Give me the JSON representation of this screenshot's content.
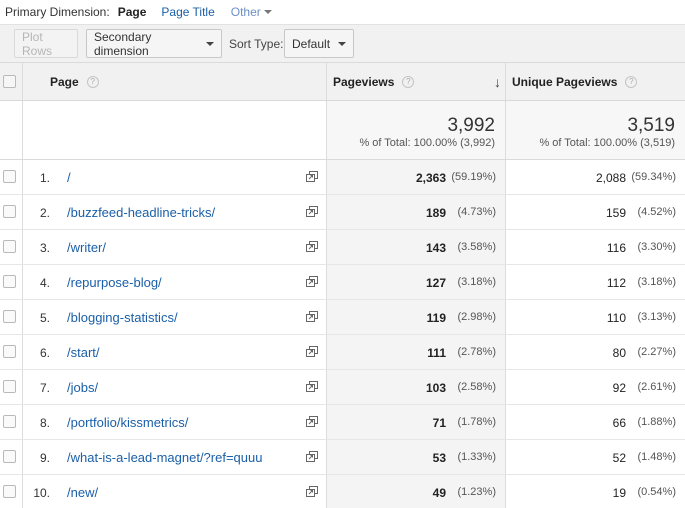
{
  "dimension": {
    "label": "Primary Dimension:",
    "active": "Page",
    "options": [
      "Page Title"
    ],
    "other": "Other"
  },
  "toolbar": {
    "plot_rows": "Plot Rows",
    "secondary": "Secondary dimension",
    "sort_label": "Sort Type:",
    "sort_value": "Default"
  },
  "headers": {
    "page": "Page",
    "pageviews": "Pageviews",
    "unique": "Unique Pageviews",
    "help": "?",
    "sort_arrow": "↓"
  },
  "totals": {
    "pageviews": "3,992",
    "pageviews_sub": "% of Total: 100.00% (3,992)",
    "unique": "3,519",
    "unique_sub": "% of Total: 100.00% (3,519)"
  },
  "rows": [
    {
      "n": "1.",
      "page": "/",
      "pv": "2,363",
      "pv_pct": "(59.19%)",
      "upv": "2,088",
      "upv_pct": "(59.34%)"
    },
    {
      "n": "2.",
      "page": "/buzzfeed-headline-tricks/",
      "pv": "189",
      "pv_pct": "(4.73%)",
      "upv": "159",
      "upv_pct": "(4.52%)"
    },
    {
      "n": "3.",
      "page": "/writer/",
      "pv": "143",
      "pv_pct": "(3.58%)",
      "upv": "116",
      "upv_pct": "(3.30%)"
    },
    {
      "n": "4.",
      "page": "/repurpose-blog/",
      "pv": "127",
      "pv_pct": "(3.18%)",
      "upv": "112",
      "upv_pct": "(3.18%)"
    },
    {
      "n": "5.",
      "page": "/blogging-statistics/",
      "pv": "119",
      "pv_pct": "(2.98%)",
      "upv": "110",
      "upv_pct": "(3.13%)"
    },
    {
      "n": "6.",
      "page": "/start/",
      "pv": "111",
      "pv_pct": "(2.78%)",
      "upv": "80",
      "upv_pct": "(2.27%)"
    },
    {
      "n": "7.",
      "page": "/jobs/",
      "pv": "103",
      "pv_pct": "(2.58%)",
      "upv": "92",
      "upv_pct": "(2.61%)"
    },
    {
      "n": "8.",
      "page": "/portfolio/kissmetrics/",
      "pv": "71",
      "pv_pct": "(1.78%)",
      "upv": "66",
      "upv_pct": "(1.88%)"
    },
    {
      "n": "9.",
      "page": "/what-is-a-lead-magnet/?ref=quuu",
      "pv": "53",
      "pv_pct": "(1.33%)",
      "upv": "52",
      "upv_pct": "(1.48%)"
    },
    {
      "n": "10.",
      "page": "/new/",
      "pv": "49",
      "pv_pct": "(1.23%)",
      "upv": "19",
      "upv_pct": "(0.54%)"
    }
  ],
  "colors": {
    "link": "#1a5fa8",
    "header_bg": "#f1f1f1"
  }
}
